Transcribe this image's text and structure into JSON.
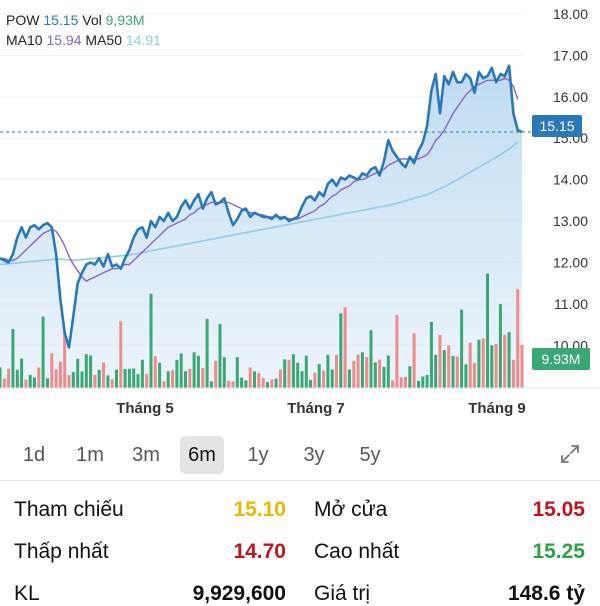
{
  "legend": {
    "symbol": "POW",
    "price": "15.15",
    "vol_label": "Vol",
    "vol_value": "9,93M",
    "ma10_label": "MA10",
    "ma10_value": "15.94",
    "ma50_label": "MA50",
    "ma50_value": "14.91"
  },
  "chart_data": {
    "type": "line",
    "ylim": [
      9.5,
      18.0
    ],
    "y_ticks": [
      "18.00",
      "17.00",
      "16.00",
      "15.00",
      "14.00",
      "13.00",
      "12.00",
      "11.00",
      "10.00"
    ],
    "x_labels": [
      "Tháng 5",
      "Tháng 7",
      "Tháng 9"
    ],
    "current_price_label": "15.15",
    "current_volume_label": "9.93M",
    "series": [
      {
        "values": [
          12.1,
          12.05,
          12.0,
          12.2,
          12.6,
          12.85,
          12.6,
          12.85,
          12.9,
          12.8,
          12.9,
          12.95,
          12.85,
          12.2,
          11.1,
          10.3,
          9.95,
          10.7,
          11.5,
          11.75,
          11.95,
          12.0,
          11.95,
          12.1,
          11.9,
          12.2,
          11.9,
          11.95,
          11.85,
          12.1,
          12.3,
          12.6,
          12.8,
          12.85,
          12.6,
          13.0,
          12.85,
          13.1,
          13.0,
          13.2,
          13.0,
          13.1,
          13.35,
          13.5,
          13.3,
          13.5,
          13.65,
          13.3,
          13.55,
          13.7,
          13.4,
          13.45,
          13.55,
          13.2,
          12.9,
          13.05,
          13.25,
          13.3,
          13.1,
          13.2,
          13.15,
          13.1,
          13.1,
          13.05,
          13.15,
          13.05,
          13.1,
          13.0,
          13.05,
          13.1,
          13.35,
          13.55,
          13.6,
          13.5,
          13.7,
          13.6,
          13.9,
          14.0,
          13.85,
          14.05,
          14.0,
          14.1,
          14.05,
          14.0,
          14.15,
          14.1,
          14.25,
          14.3,
          14.1,
          14.45,
          14.95,
          14.7,
          14.55,
          14.4,
          14.3,
          14.55,
          14.4,
          14.7,
          14.9,
          15.3,
          16.15,
          16.55,
          15.6,
          16.5,
          16.3,
          16.6,
          16.35,
          16.35,
          16.55,
          16.45,
          16.1,
          16.6,
          16.45,
          16.5,
          16.7,
          16.35,
          16.55,
          16.5,
          16.75,
          15.6,
          15.2,
          15.15
        ]
      },
      {
        "values": [
          12.1,
          12.1,
          12.05,
          12.05,
          12.1,
          12.2,
          12.3,
          12.4,
          12.5,
          12.6,
          12.7,
          12.75,
          12.8,
          12.75,
          12.6,
          12.4,
          12.15,
          11.95,
          11.8,
          11.65,
          11.55,
          11.6,
          11.65,
          11.7,
          11.75,
          11.8,
          11.85,
          11.85,
          11.9,
          11.95,
          11.95,
          12.05,
          12.15,
          12.25,
          12.35,
          12.45,
          12.55,
          12.65,
          12.75,
          12.85,
          12.9,
          12.95,
          13.0,
          13.05,
          13.15,
          13.2,
          13.3,
          13.35,
          13.4,
          13.45,
          13.45,
          13.45,
          13.45,
          13.45,
          13.4,
          13.35,
          13.3,
          13.25,
          13.2,
          13.2,
          13.15,
          13.15,
          13.1,
          13.1,
          13.1,
          13.1,
          13.1,
          13.05,
          13.05,
          13.05,
          13.1,
          13.15,
          13.2,
          13.25,
          13.35,
          13.4,
          13.5,
          13.6,
          13.65,
          13.75,
          13.8,
          13.85,
          13.95,
          14.0,
          14.0,
          14.05,
          14.1,
          14.15,
          14.2,
          14.25,
          14.35,
          14.4,
          14.45,
          14.5,
          14.5,
          14.5,
          14.5,
          14.5,
          14.55,
          14.6,
          14.75,
          14.95,
          15.05,
          15.2,
          15.4,
          15.6,
          15.75,
          15.9,
          16.05,
          16.15,
          16.25,
          16.3,
          16.35,
          16.4,
          16.4,
          16.4,
          16.4,
          16.45,
          16.4,
          16.25,
          15.94
        ]
      },
      {
        "values": [
          11.95,
          11.96,
          11.97,
          11.98,
          11.99,
          12.0,
          12.01,
          12.02,
          12.03,
          12.04,
          12.05,
          12.06,
          12.07,
          12.08,
          12.08,
          12.07,
          12.06,
          12.05,
          12.06,
          12.07,
          12.08,
          12.09,
          12.1,
          12.11,
          12.12,
          12.13,
          12.14,
          12.15,
          12.16,
          12.17,
          12.18,
          12.2,
          12.22,
          12.24,
          12.26,
          12.28,
          12.3,
          12.32,
          12.34,
          12.36,
          12.38,
          12.4,
          12.42,
          12.44,
          12.46,
          12.48,
          12.5,
          12.52,
          12.54,
          12.56,
          12.58,
          12.6,
          12.62,
          12.64,
          12.66,
          12.68,
          12.7,
          12.72,
          12.74,
          12.76,
          12.78,
          12.8,
          12.82,
          12.84,
          12.86,
          12.88,
          12.9,
          12.92,
          12.94,
          12.96,
          12.98,
          13.0,
          13.02,
          13.04,
          13.06,
          13.08,
          13.1,
          13.12,
          13.14,
          13.16,
          13.18,
          13.2,
          13.22,
          13.24,
          13.26,
          13.28,
          13.3,
          13.32,
          13.34,
          13.36,
          13.38,
          13.4,
          13.43,
          13.46,
          13.49,
          13.52,
          13.55,
          13.58,
          13.61,
          13.64,
          13.68,
          13.73,
          13.78,
          13.83,
          13.88,
          13.94,
          14.0,
          14.06,
          14.12,
          14.18,
          14.24,
          14.3,
          14.36,
          14.42,
          14.48,
          14.54,
          14.6,
          14.67,
          14.74,
          14.82,
          14.91
        ]
      }
    ]
  },
  "ranges": [
    {
      "label": "1d",
      "active": false
    },
    {
      "label": "1m",
      "active": false
    },
    {
      "label": "3m",
      "active": false
    },
    {
      "label": "6m",
      "active": true
    },
    {
      "label": "1y",
      "active": false
    },
    {
      "label": "3y",
      "active": false
    },
    {
      "label": "5y",
      "active": false
    }
  ],
  "stats": {
    "ref_label": "Tham chiếu",
    "ref_value": "15.10",
    "open_label": "Mở cửa",
    "open_value": "15.05",
    "low_label": "Thấp nhất",
    "low_value": "14.70",
    "high_label": "Cao nhất",
    "high_value": "15.25",
    "kl_label": "KL",
    "kl_value": "9,929,600",
    "gt_label": "Giá trị",
    "gt_value": "148.6 tỷ"
  },
  "colors": {
    "price_line": "#2a78b8",
    "ma10": "#8a63c7",
    "ma50": "#8fcbe9",
    "volume_up": "#3aa776",
    "volume_down": "#ee8b8b",
    "ref": "#e6b800",
    "down": "#c0161b",
    "up": "#2ea043"
  }
}
